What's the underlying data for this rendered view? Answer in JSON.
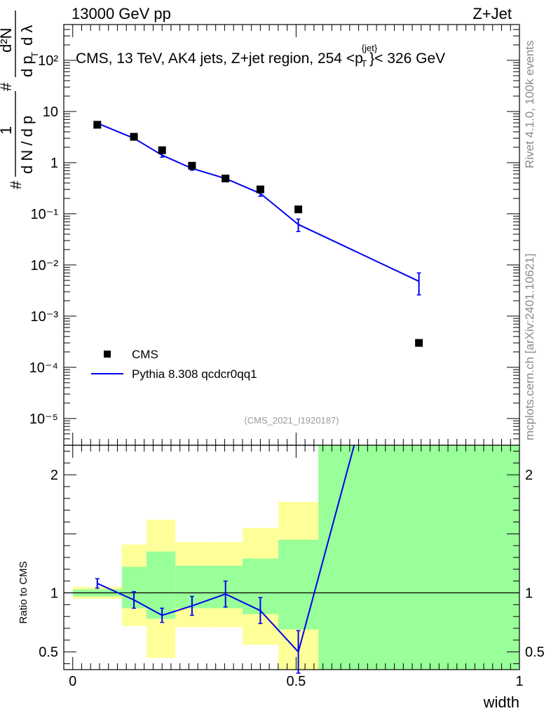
{
  "header": {
    "left": "13000 GeV pp",
    "right": "Z+Jet"
  },
  "side_labels": {
    "rivet": "Rivet 4.1.0,  100k events",
    "mcplots": "mcplots.cern.ch [arXiv:2401.10621]"
  },
  "chart_data": [
    {
      "type": "scatter",
      "title": "CMS, 13 TeV, AK4 jets, Z+jet region, 254 <p_T^{jet}< 326 GeV",
      "title_parts": {
        "before": "CMS, 13 TeV, AK4 jets, Z+jet region, 254 <p",
        "sup": "{jet}",
        "sub": "T",
        "after": "}< 326 GeV"
      },
      "ylabel": "1/N dN/dp_T d^2N/dp_T dλ",
      "ylabel_parts": {
        "hash1": "#",
        "one": "1",
        "dN": "d N / d p",
        "hash2": "#",
        "d2N": "d²N",
        "dpt": "d p",
        "T": "T",
        "dlambda": "d λ"
      },
      "yscale": "log",
      "ylim": [
        3e-06,
        500
      ],
      "xlim": [
        -0.02,
        1.0
      ],
      "y_tick_labels": [
        {
          "value": 100,
          "label": "10²"
        },
        {
          "value": 10,
          "label": "10"
        },
        {
          "value": 1,
          "label": "1"
        },
        {
          "value": 0.1,
          "label": "10⁻¹"
        },
        {
          "value": 0.01,
          "label": "10⁻²"
        },
        {
          "value": 0.001,
          "label": "10⁻³"
        },
        {
          "value": 0.0001,
          "label": "10⁻⁴"
        },
        {
          "value": 1e-05,
          "label": "10⁻⁵"
        }
      ],
      "series": [
        {
          "name": "CMS",
          "kind": "markers",
          "color": "#000000",
          "x": [
            0.055,
            0.137,
            0.2,
            0.267,
            0.342,
            0.42,
            0.505,
            0.775
          ],
          "y": [
            5.5,
            3.2,
            1.75,
            0.87,
            0.49,
            0.3,
            0.122,
            0.0003
          ]
        },
        {
          "name": "Pythia 8.308 qcdcr0qq1",
          "kind": "line",
          "color": "#0000ee",
          "x": [
            0.055,
            0.137,
            0.2,
            0.267,
            0.342,
            0.42,
            0.505,
            0.775
          ],
          "y": [
            5.9,
            3.0,
            1.4,
            0.77,
            0.49,
            0.25,
            0.062,
            0.0048
          ],
          "err": [
            0.22,
            0.15,
            0.12,
            0.06,
            0.04,
            0.03,
            0.017,
            0.0022
          ]
        }
      ],
      "legend": {
        "placement": "bottom-left",
        "entries": [
          "CMS",
          "Pythia 8.308 qcdcr0qq1"
        ]
      },
      "watermark": "(CMS_2021_I1920187)"
    },
    {
      "type": "area",
      "ylabel": "Ratio to CMS",
      "xlabel": "width",
      "ylim": [
        0.35,
        2.25
      ],
      "xlim": [
        -0.02,
        1.0
      ],
      "x_tick_labels": [
        {
          "value": 0,
          "label": "0"
        },
        {
          "value": 0.5,
          "label": "0.5"
        },
        {
          "value": 1,
          "label": "1"
        }
      ],
      "y_tick_labels": [
        {
          "value": 0.5,
          "label": "0.5"
        },
        {
          "value": 1,
          "label": "1"
        },
        {
          "value": 2,
          "label": "2"
        }
      ],
      "reference_line": 1,
      "bands": [
        {
          "x0": 0.0,
          "x1": 0.11,
          "y_lo": 0.95,
          "y_hi": 1.05,
          "g_lo": 0.97,
          "g_hi": 1.03
        },
        {
          "x0": 0.11,
          "x1": 0.165,
          "y_lo": 0.72,
          "y_hi": 1.41,
          "g_lo": 0.87,
          "g_hi": 1.22
        },
        {
          "x0": 0.165,
          "x1": 0.23,
          "y_lo": 0.45,
          "y_hi": 1.62,
          "g_lo": 0.78,
          "g_hi": 1.35
        },
        {
          "x0": 0.23,
          "x1": 0.305,
          "y_lo": 0.71,
          "y_hi": 1.43,
          "g_lo": 0.87,
          "g_hi": 1.23
        },
        {
          "x0": 0.305,
          "x1": 0.38,
          "y_lo": 0.71,
          "y_hi": 1.43,
          "g_lo": 0.87,
          "g_hi": 1.23
        },
        {
          "x0": 0.38,
          "x1": 0.46,
          "y_lo": 0.56,
          "y_hi": 1.55,
          "g_lo": 0.82,
          "g_hi": 1.29
        },
        {
          "x0": 0.46,
          "x1": 0.55,
          "y_lo": 0.35,
          "y_hi": 1.77,
          "g_lo": 0.69,
          "g_hi": 1.45
        },
        {
          "x0": 0.55,
          "x1": 1.0,
          "y_lo": 0.35,
          "y_hi": 2.25,
          "g_lo": 0.35,
          "g_hi": 2.25
        }
      ],
      "band_colors": {
        "inner": "#99ff99",
        "outer": "#ffff99"
      },
      "series": [
        {
          "name": "Pythia 8.308 qcdcr0qq1 / CMS",
          "color": "#0000ee",
          "x": [
            0.055,
            0.137,
            0.2,
            0.267,
            0.342,
            0.42,
            0.505,
            0.63
          ],
          "y": [
            1.08,
            0.94,
            0.81,
            0.89,
            0.99,
            0.85,
            0.5,
            2.25
          ],
          "err": [
            0.04,
            0.07,
            0.06,
            0.08,
            0.11,
            0.11,
            0.18,
            0
          ]
        }
      ]
    }
  ]
}
